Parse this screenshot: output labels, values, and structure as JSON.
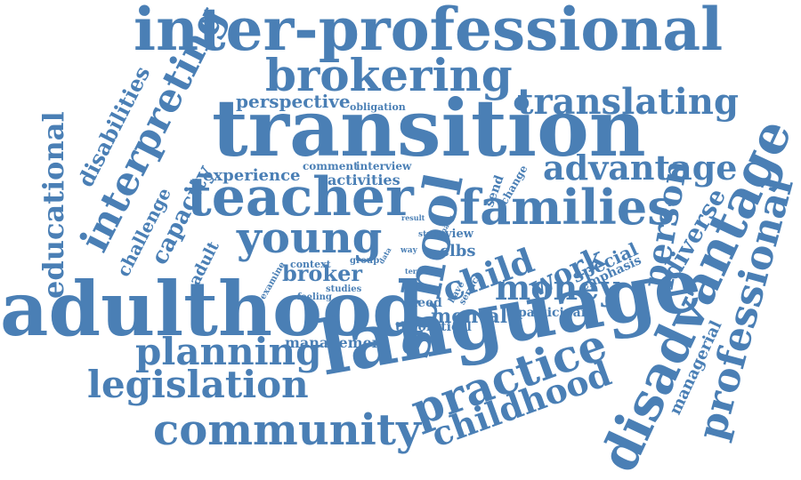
{
  "colors": {
    "word": "#4a7fb5",
    "background": "#ffffff"
  },
  "words": [
    "inter-professional",
    "transition",
    "brokering",
    "translating",
    "perspective",
    "obligation",
    "interpreting",
    "disabilities",
    "educational",
    "capacity",
    "challenge",
    "adult",
    "teacher",
    "young",
    "experience",
    "comment",
    "interview",
    "activities",
    "school",
    "families",
    "advantage",
    "send",
    "change",
    "person",
    "diverse",
    "professional",
    "disadvantage",
    "managerial",
    "adulthood",
    "child",
    "work",
    "special",
    "emphasis",
    "money",
    "broker",
    "context",
    "group",
    "examine",
    "feeling",
    "studies",
    "result",
    "study",
    "many",
    "view",
    "clbs",
    "way",
    "data",
    "need",
    "have",
    "service",
    "term",
    "theoretical",
    "mental",
    "participant",
    "management",
    "planning",
    "language",
    "legislation",
    "practice",
    "community",
    "childhood"
  ]
}
